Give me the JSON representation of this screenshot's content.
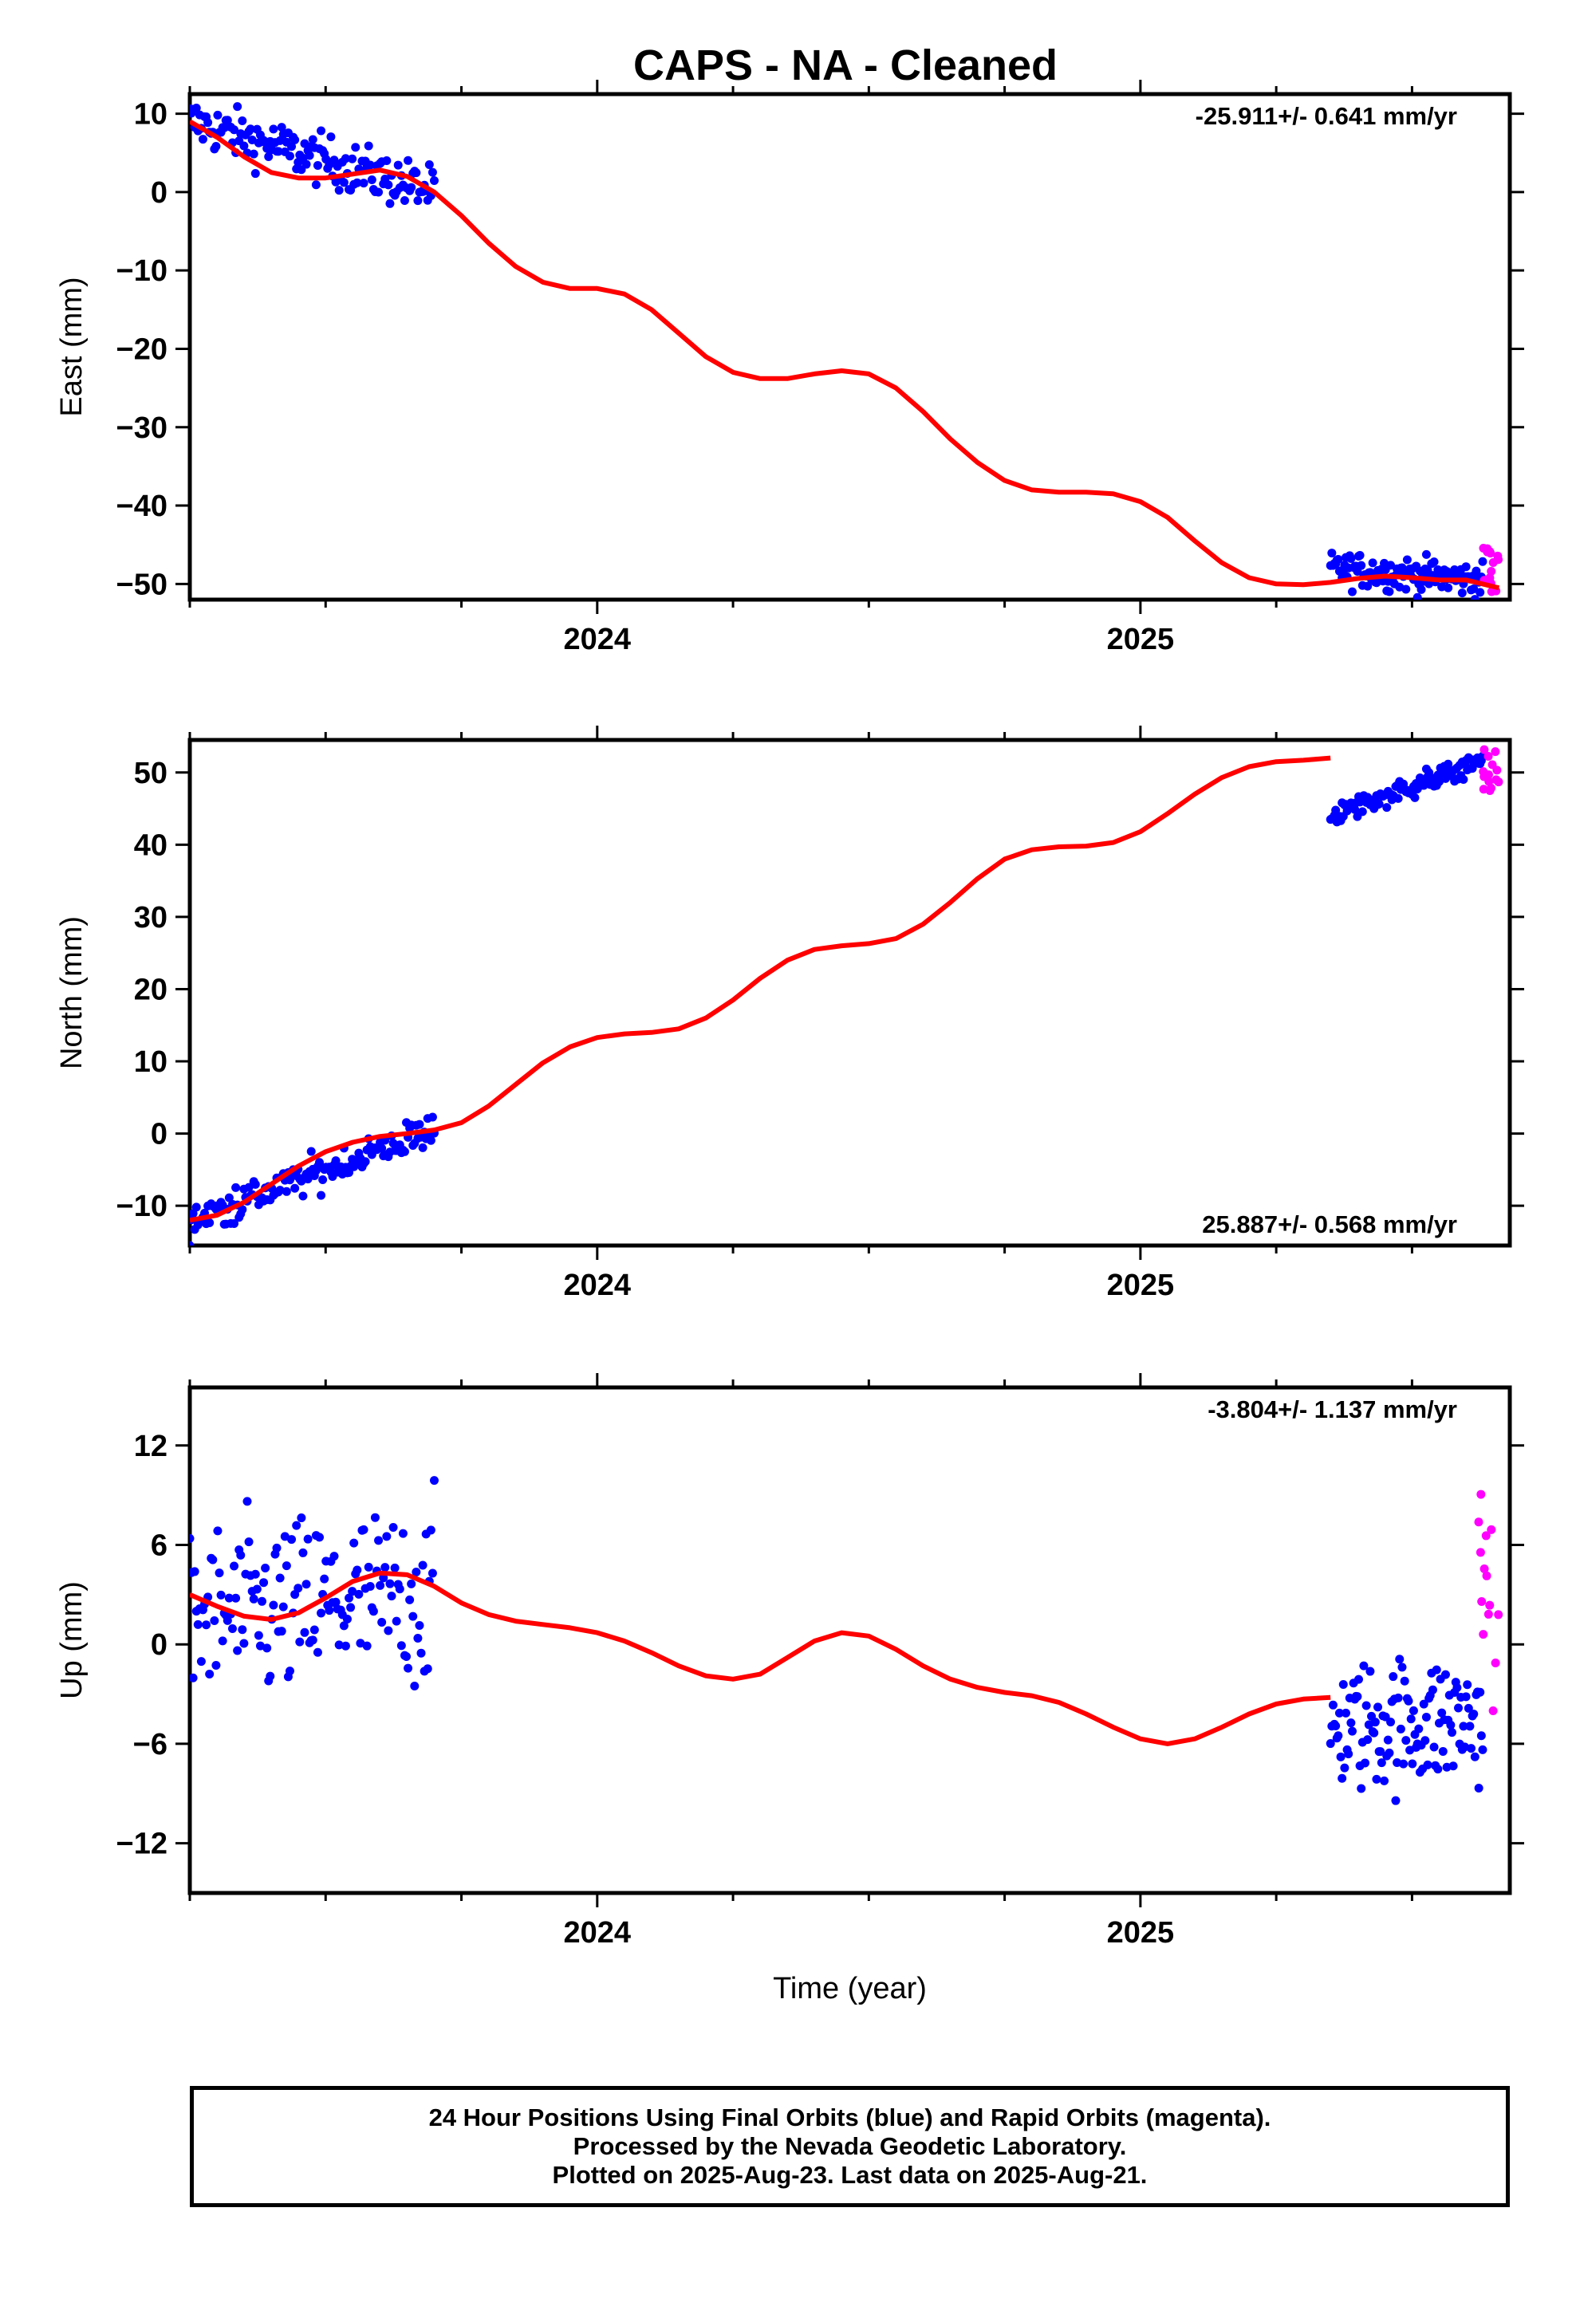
{
  "chart_data": {
    "type": "scatter",
    "title": "CAPS  - NA - Cleaned",
    "xlabel": "Time (year)",
    "xlim": [
      2023.25,
      2025.68
    ],
    "xticks": [
      2024,
      2025
    ],
    "x_tick_labels": [
      "2024",
      "2025"
    ],
    "colors": {
      "final": "#0000ff",
      "rapid": "#ff00ff",
      "model": "#ff0000"
    },
    "panels": [
      {
        "name": "east",
        "ylabel": "East (mm)",
        "ylim": [
          -52,
          12.5
        ],
        "yticks": [
          10,
          0,
          -10,
          -20,
          -30,
          -40,
          -50
        ],
        "ytick_labels": [
          "10",
          "0",
          "−10",
          "−20",
          "−30",
          "−40",
          "−50"
        ],
        "rate": "-25.911+/- 0.641 mm/yr",
        "rate_pos": "top-right",
        "final_points": [
          {
            "x_range": [
              2023.25,
              2023.7
            ],
            "mean": [
              9,
              0
            ],
            "spread": 3.2,
            "count": 150
          },
          {
            "x_range": [
              2025.35,
              2025.63
            ],
            "mean": [
              -48,
              -49.5
            ],
            "spread": 2.2,
            "count": 120
          }
        ],
        "rapid_points": {
          "x_range": [
            2025.63,
            2025.66
          ],
          "mean": -48,
          "spread": 4,
          "count": 14
        },
        "model_curve": [
          [
            2023.25,
            9.0
          ],
          [
            2023.3,
            7.0
          ],
          [
            2023.35,
            4.5
          ],
          [
            2023.4,
            2.5
          ],
          [
            2023.45,
            1.8
          ],
          [
            2023.5,
            1.8
          ],
          [
            2023.55,
            2.3
          ],
          [
            2023.6,
            2.8
          ],
          [
            2023.65,
            2.0
          ],
          [
            2023.7,
            0.0
          ],
          [
            2023.75,
            -3.0
          ],
          [
            2023.8,
            -6.5
          ],
          [
            2023.85,
            -9.5
          ],
          [
            2023.9,
            -11.5
          ],
          [
            2023.95,
            -12.3
          ],
          [
            2024.0,
            -12.3
          ],
          [
            2024.05,
            -13.0
          ],
          [
            2024.1,
            -15.0
          ],
          [
            2024.15,
            -18.0
          ],
          [
            2024.2,
            -21.0
          ],
          [
            2024.25,
            -23.0
          ],
          [
            2024.3,
            -23.8
          ],
          [
            2024.35,
            -23.8
          ],
          [
            2024.4,
            -23.2
          ],
          [
            2024.45,
            -22.8
          ],
          [
            2024.5,
            -23.2
          ],
          [
            2024.55,
            -25.0
          ],
          [
            2024.6,
            -28.0
          ],
          [
            2024.65,
            -31.5
          ],
          [
            2024.7,
            -34.5
          ],
          [
            2024.75,
            -36.8
          ],
          [
            2024.8,
            -38.0
          ],
          [
            2024.85,
            -38.3
          ],
          [
            2024.9,
            -38.3
          ],
          [
            2024.95,
            -38.5
          ],
          [
            2025.0,
            -39.5
          ],
          [
            2025.05,
            -41.5
          ],
          [
            2025.1,
            -44.5
          ],
          [
            2025.15,
            -47.3
          ],
          [
            2025.2,
            -49.2
          ],
          [
            2025.25,
            -50.0
          ],
          [
            2025.3,
            -50.1
          ],
          [
            2025.35,
            -49.8
          ],
          [
            2025.4,
            -49.3
          ],
          [
            2025.45,
            -49.0
          ],
          [
            2025.5,
            -49.2
          ],
          [
            2025.55,
            -49.5
          ],
          [
            2025.6,
            -49.5
          ],
          [
            2025.66,
            -50.5
          ]
        ]
      },
      {
        "name": "north",
        "ylabel": "North (mm)",
        "ylim": [
          -15.5,
          54.5
        ],
        "yticks": [
          50,
          40,
          30,
          20,
          10,
          0,
          -10
        ],
        "ytick_labels": [
          "50",
          "40",
          "30",
          "20",
          "10",
          "0",
          "−10"
        ],
        "rate": "25.887+/- 0.568 mm/yr",
        "rate_pos": "bottom-right",
        "final_points": [
          {
            "x_range": [
              2023.25,
              2023.7
            ],
            "mean": [
              -12,
              0.5
            ],
            "spread": 2.5,
            "count": 150
          },
          {
            "x_range": [
              2025.35,
              2025.63
            ],
            "mean": [
              44,
              51.5
            ],
            "spread": 1.5,
            "count": 120
          }
        ],
        "rapid_points": {
          "x_range": [
            2025.63,
            2025.66
          ],
          "mean": 50,
          "spread": 3,
          "count": 14
        },
        "model_curve": [
          [
            2023.25,
            -12.0
          ],
          [
            2023.3,
            -11.3
          ],
          [
            2023.35,
            -9.5
          ],
          [
            2023.4,
            -7.0
          ],
          [
            2023.45,
            -4.5
          ],
          [
            2023.5,
            -2.5
          ],
          [
            2023.55,
            -1.2
          ],
          [
            2023.6,
            -0.4
          ],
          [
            2023.65,
            0.0
          ],
          [
            2023.7,
            0.5
          ],
          [
            2023.75,
            1.5
          ],
          [
            2023.8,
            3.8
          ],
          [
            2023.85,
            6.8
          ],
          [
            2023.9,
            9.8
          ],
          [
            2023.95,
            12.0
          ],
          [
            2024.0,
            13.3
          ],
          [
            2024.05,
            13.8
          ],
          [
            2024.1,
            14.0
          ],
          [
            2024.15,
            14.5
          ],
          [
            2024.2,
            16.0
          ],
          [
            2024.25,
            18.5
          ],
          [
            2024.3,
            21.5
          ],
          [
            2024.35,
            24.0
          ],
          [
            2024.4,
            25.5
          ],
          [
            2024.45,
            26.0
          ],
          [
            2024.5,
            26.3
          ],
          [
            2024.55,
            27.0
          ],
          [
            2024.6,
            29.0
          ],
          [
            2024.65,
            32.0
          ],
          [
            2024.7,
            35.3
          ],
          [
            2024.75,
            38.0
          ],
          [
            2024.8,
            39.3
          ],
          [
            2024.85,
            39.7
          ],
          [
            2024.9,
            39.8
          ],
          [
            2024.95,
            40.3
          ],
          [
            2025.0,
            41.8
          ],
          [
            2025.05,
            44.3
          ],
          [
            2025.1,
            47.0
          ],
          [
            2025.15,
            49.3
          ],
          [
            2025.2,
            50.8
          ],
          [
            2025.25,
            51.5
          ],
          [
            2025.3,
            51.7
          ],
          [
            2025.35,
            52.0
          ]
        ]
      },
      {
        "name": "up",
        "ylabel": "Up (mm)",
        "ylim": [
          -15,
          15.5
        ],
        "yticks": [
          12,
          6,
          0,
          -6,
          -12
        ],
        "ytick_labels": [
          "12",
          "6",
          "0",
          "−6",
          "−12"
        ],
        "rate": "-3.804+/- 1.137 mm/yr",
        "rate_pos": "top-right",
        "final_points": [
          {
            "x_range": [
              2023.25,
              2023.7
            ],
            "mean": [
              1.5,
              3.0
            ],
            "spread": 5.5,
            "count": 150
          },
          {
            "x_range": [
              2025.35,
              2025.63
            ],
            "mean": [
              -5.0,
              -4.5
            ],
            "spread": 4.0,
            "count": 120
          }
        ],
        "rapid_points": {
          "x_range": [
            2025.62,
            2025.66
          ],
          "mean": 3.0,
          "spread": 6,
          "count": 14
        },
        "model_curve": [
          [
            2023.25,
            3.0
          ],
          [
            2023.3,
            2.3
          ],
          [
            2023.35,
            1.7
          ],
          [
            2023.4,
            1.5
          ],
          [
            2023.45,
            1.9
          ],
          [
            2023.5,
            2.8
          ],
          [
            2023.55,
            3.8
          ],
          [
            2023.6,
            4.3
          ],
          [
            2023.65,
            4.2
          ],
          [
            2023.7,
            3.5
          ],
          [
            2023.75,
            2.5
          ],
          [
            2023.8,
            1.8
          ],
          [
            2023.85,
            1.4
          ],
          [
            2023.9,
            1.2
          ],
          [
            2023.95,
            1.0
          ],
          [
            2024.0,
            0.7
          ],
          [
            2024.05,
            0.2
          ],
          [
            2024.1,
            -0.5
          ],
          [
            2024.15,
            -1.3
          ],
          [
            2024.2,
            -1.9
          ],
          [
            2024.25,
            -2.1
          ],
          [
            2024.3,
            -1.8
          ],
          [
            2024.35,
            -0.8
          ],
          [
            2024.4,
            0.2
          ],
          [
            2024.45,
            0.7
          ],
          [
            2024.5,
            0.5
          ],
          [
            2024.55,
            -0.3
          ],
          [
            2024.6,
            -1.3
          ],
          [
            2024.65,
            -2.1
          ],
          [
            2024.7,
            -2.6
          ],
          [
            2024.75,
            -2.9
          ],
          [
            2024.8,
            -3.1
          ],
          [
            2024.85,
            -3.5
          ],
          [
            2024.9,
            -4.2
          ],
          [
            2024.95,
            -5.0
          ],
          [
            2025.0,
            -5.7
          ],
          [
            2025.05,
            -6.0
          ],
          [
            2025.1,
            -5.7
          ],
          [
            2025.15,
            -5.0
          ],
          [
            2025.2,
            -4.2
          ],
          [
            2025.25,
            -3.6
          ],
          [
            2025.3,
            -3.3
          ],
          [
            2025.35,
            -3.2
          ]
        ]
      }
    ]
  },
  "footer": {
    "line1": "24 Hour Positions Using Final Orbits (blue) and Rapid Orbits (magenta).",
    "line2": "Processed by the Nevada Geodetic Laboratory.",
    "line3": "Plotted on 2025-Aug-23. Last data on 2025-Aug-21."
  }
}
